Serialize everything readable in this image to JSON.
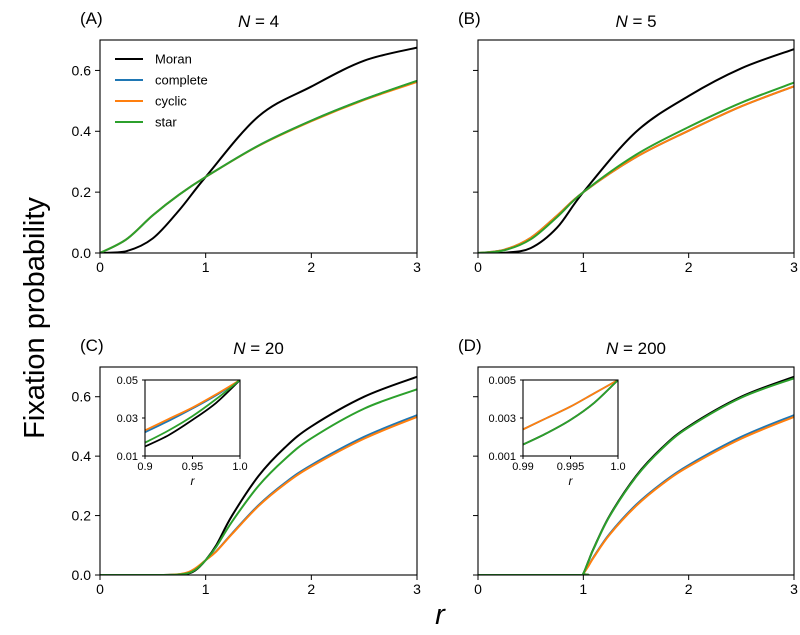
{
  "figure": {
    "ylabel": "Fixation probability",
    "xlabel": "r"
  },
  "legend": [
    {
      "name": "Moran",
      "color": "#000000"
    },
    {
      "name": "complete",
      "color": "#1f77b4"
    },
    {
      "name": "cyclic",
      "color": "#ff7f0e"
    },
    {
      "name": "star",
      "color": "#2ca02c"
    }
  ],
  "chart_data": [
    {
      "type": "line",
      "letter": "(A)",
      "title_var": "N",
      "title_val": "4",
      "xlim": [
        0,
        3
      ],
      "ylim": [
        0,
        0.7
      ],
      "xticks": [
        0,
        1,
        2,
        3
      ],
      "yticks": [
        0,
        0.2,
        0.4,
        0.6
      ],
      "xtick_labels": [
        "0",
        "1",
        "2",
        "3"
      ],
      "ytick_labels": [
        "0.0",
        "0.2",
        "0.4",
        "0.6"
      ],
      "series": [
        {
          "name": "Moran",
          "x": [
            0,
            0.25,
            0.5,
            0.75,
            1,
            1.5,
            2,
            2.5,
            3
          ],
          "y": [
            0,
            0.006,
            0.048,
            0.141,
            0.25,
            0.449,
            0.547,
            0.632,
            0.675
          ]
        },
        {
          "name": "complete",
          "x": [
            0,
            0.25,
            0.5,
            0.75,
            1,
            1.5,
            2,
            2.5,
            3
          ],
          "y": [
            0,
            0.045,
            0.124,
            0.192,
            0.25,
            0.353,
            0.435,
            0.505,
            0.565
          ]
        },
        {
          "name": "cyclic",
          "x": [
            0,
            0.25,
            0.5,
            0.75,
            1,
            1.5,
            2,
            2.5,
            3
          ],
          "y": [
            0,
            0.045,
            0.124,
            0.192,
            0.25,
            0.352,
            0.433,
            0.503,
            0.562
          ]
        },
        {
          "name": "star",
          "x": [
            0,
            0.25,
            0.5,
            0.75,
            1,
            1.5,
            2,
            2.5,
            3
          ],
          "y": [
            0,
            0.045,
            0.124,
            0.192,
            0.25,
            0.353,
            0.435,
            0.505,
            0.566
          ]
        }
      ]
    },
    {
      "type": "line",
      "letter": "(B)",
      "title_var": "N",
      "title_val": "5",
      "xlim": [
        0,
        3
      ],
      "ylim": [
        0,
        0.7
      ],
      "xticks": [
        0,
        1,
        2,
        3
      ],
      "yticks": [
        0,
        0.2,
        0.4,
        0.6
      ],
      "xtick_labels": [
        "0",
        "1",
        "2",
        "3"
      ],
      "ytick_labels": [],
      "series": [
        {
          "name": "Moran",
          "x": [
            0,
            0.25,
            0.5,
            0.75,
            1,
            1.5,
            2,
            2.5,
            3
          ],
          "y": [
            0,
            0.001,
            0.016,
            0.083,
            0.2,
            0.398,
            0.516,
            0.607,
            0.67
          ]
        },
        {
          "name": "complete",
          "x": [
            0,
            0.25,
            0.5,
            0.75,
            1,
            1.5,
            2,
            2.5,
            3
          ],
          "y": [
            0,
            0.011,
            0.05,
            0.123,
            0.2,
            0.315,
            0.402,
            0.482,
            0.548
          ]
        },
        {
          "name": "cyclic",
          "x": [
            0,
            0.25,
            0.5,
            0.75,
            1,
            1.5,
            2,
            2.5,
            3
          ],
          "y": [
            0,
            0.011,
            0.05,
            0.123,
            0.2,
            0.315,
            0.402,
            0.482,
            0.548
          ]
        },
        {
          "name": "star",
          "x": [
            0,
            0.25,
            0.5,
            0.75,
            1,
            1.5,
            2,
            2.5,
            3
          ],
          "y": [
            0,
            0.009,
            0.045,
            0.118,
            0.2,
            0.323,
            0.414,
            0.494,
            0.56
          ]
        }
      ]
    },
    {
      "type": "line",
      "letter": "(C)",
      "title_var": "N",
      "title_val": "20",
      "xlim": [
        0,
        3
      ],
      "ylim": [
        0,
        0.7
      ],
      "xticks": [
        0,
        1,
        2,
        3
      ],
      "yticks": [
        0,
        0.2,
        0.4,
        0.6
      ],
      "xtick_labels": [
        "0",
        "1",
        "2",
        "3"
      ],
      "ytick_labels": [
        "0.0",
        "0.2",
        "0.4",
        "0.6"
      ],
      "series": [
        {
          "name": "Moran",
          "x": [
            0,
            0.6,
            0.8,
            0.9,
            1,
            1.1,
            1.25,
            1.5,
            1.75,
            2,
            2.5,
            3
          ],
          "y": [
            0,
            0.0,
            0.003,
            0.015,
            0.05,
            0.1,
            0.2,
            0.333,
            0.429,
            0.5,
            0.6,
            0.667
          ]
        },
        {
          "name": "complete",
          "x": [
            0,
            0.6,
            0.8,
            0.9,
            1,
            1.1,
            1.25,
            1.5,
            1.75,
            2,
            2.5,
            3
          ],
          "y": [
            0,
            0.0,
            0.005,
            0.02,
            0.05,
            0.08,
            0.14,
            0.235,
            0.31,
            0.37,
            0.465,
            0.538
          ]
        },
        {
          "name": "cyclic",
          "x": [
            0,
            0.6,
            0.8,
            0.9,
            1,
            1.1,
            1.25,
            1.5,
            1.75,
            2,
            2.5,
            3
          ],
          "y": [
            0,
            0.0,
            0.006,
            0.022,
            0.05,
            0.079,
            0.138,
            0.232,
            0.306,
            0.365,
            0.459,
            0.532
          ]
        },
        {
          "name": "star",
          "x": [
            0,
            0.6,
            0.8,
            0.9,
            1,
            1.1,
            1.25,
            1.5,
            1.75,
            2,
            2.5,
            3
          ],
          "y": [
            0,
            0.0,
            0.004,
            0.017,
            0.05,
            0.095,
            0.18,
            0.3,
            0.39,
            0.46,
            0.56,
            0.625
          ]
        }
      ],
      "inset": {
        "xlim": [
          0.9,
          1.0
        ],
        "ylim": [
          0.01,
          0.05
        ],
        "xticks": [
          0.9,
          0.95,
          1.0
        ],
        "yticks": [
          0.01,
          0.03,
          0.05
        ],
        "xtick_labels": [
          "0.9",
          "0.95",
          "1.0"
        ],
        "ytick_labels": [
          "0.01",
          "0.03",
          "0.05"
        ],
        "xlabel": "r",
        "series": [
          {
            "name": "Moran",
            "x": [
              0.9,
              0.925,
              0.95,
              0.975,
              1.0
            ],
            "y": [
              0.015,
              0.021,
              0.029,
              0.038,
              0.05
            ]
          },
          {
            "name": "complete",
            "x": [
              0.9,
              0.925,
              0.95,
              0.975,
              1.0
            ],
            "y": [
              0.0225,
              0.0285,
              0.035,
              0.042,
              0.05
            ]
          },
          {
            "name": "cyclic",
            "x": [
              0.9,
              0.925,
              0.95,
              0.975,
              1.0
            ],
            "y": [
              0.0235,
              0.0295,
              0.0355,
              0.0425,
              0.05
            ]
          },
          {
            "name": "star",
            "x": [
              0.9,
              0.925,
              0.95,
              0.975,
              1.0
            ],
            "y": [
              0.017,
              0.0235,
              0.031,
              0.04,
              0.05
            ]
          }
        ]
      }
    },
    {
      "type": "line",
      "letter": "(D)",
      "title_var": "N",
      "title_val": "200",
      "xlim": [
        0,
        3
      ],
      "ylim": [
        0,
        0.7
      ],
      "xticks": [
        0,
        1,
        2,
        3
      ],
      "yticks": [
        0,
        0.2,
        0.4,
        0.6
      ],
      "xtick_labels": [
        "0",
        "1",
        "2",
        "3"
      ],
      "ytick_labels": [],
      "series": [
        {
          "name": "Moran",
          "x": [
            0,
            0.97,
            1,
            1.05,
            1.1,
            1.25,
            1.5,
            1.75,
            2,
            2.5,
            3
          ],
          "y": [
            0,
            0.0,
            0.005,
            0.048,
            0.091,
            0.2,
            0.333,
            0.429,
            0.5,
            0.6,
            0.667
          ]
        },
        {
          "name": "complete",
          "x": [
            0,
            0.97,
            1,
            1.05,
            1.1,
            1.25,
            1.5,
            1.75,
            2,
            2.5,
            3
          ],
          "y": [
            0,
            0.0,
            0.005,
            0.032,
            0.062,
            0.139,
            0.236,
            0.31,
            0.37,
            0.465,
            0.538
          ]
        },
        {
          "name": "cyclic",
          "x": [
            0,
            0.97,
            1,
            1.05,
            1.1,
            1.25,
            1.5,
            1.75,
            2,
            2.5,
            3
          ],
          "y": [
            0,
            0.0,
            0.005,
            0.031,
            0.06,
            0.136,
            0.232,
            0.306,
            0.365,
            0.459,
            0.532
          ]
        },
        {
          "name": "star",
          "x": [
            0,
            0.97,
            1,
            1.05,
            1.1,
            1.25,
            1.5,
            1.75,
            2,
            2.5,
            3
          ],
          "y": [
            0,
            0.0,
            0.005,
            0.047,
            0.09,
            0.198,
            0.33,
            0.426,
            0.497,
            0.597,
            0.662
          ]
        }
      ],
      "inset": {
        "xlim": [
          0.99,
          1.0
        ],
        "ylim": [
          0.001,
          0.005
        ],
        "xticks": [
          0.99,
          0.995,
          1.0
        ],
        "yticks": [
          0.001,
          0.003,
          0.005
        ],
        "xtick_labels": [
          "0.99",
          "0.995",
          "1.0"
        ],
        "ytick_labels": [
          "0.001",
          "0.003",
          "0.005"
        ],
        "xlabel": "r",
        "series": [
          {
            "name": "Moran",
            "x": [
              0.99,
              0.9925,
              0.995,
              0.9975,
              1.0
            ],
            "y": [
              0.0016,
              0.0022,
              0.0029,
              0.0038,
              0.005
            ]
          },
          {
            "name": "complete",
            "x": [
              0.99,
              0.9925,
              0.995,
              0.9975,
              1.0
            ],
            "y": [
              0.0024,
              0.003,
              0.0036,
              0.0043,
              0.005
            ]
          },
          {
            "name": "cyclic",
            "x": [
              0.99,
              0.9925,
              0.995,
              0.9975,
              1.0
            ],
            "y": [
              0.0024,
              0.003,
              0.0036,
              0.0043,
              0.005
            ]
          },
          {
            "name": "star",
            "x": [
              0.99,
              0.9925,
              0.995,
              0.9975,
              1.0
            ],
            "y": [
              0.0016,
              0.0022,
              0.0029,
              0.0038,
              0.005
            ]
          }
        ]
      }
    }
  ]
}
